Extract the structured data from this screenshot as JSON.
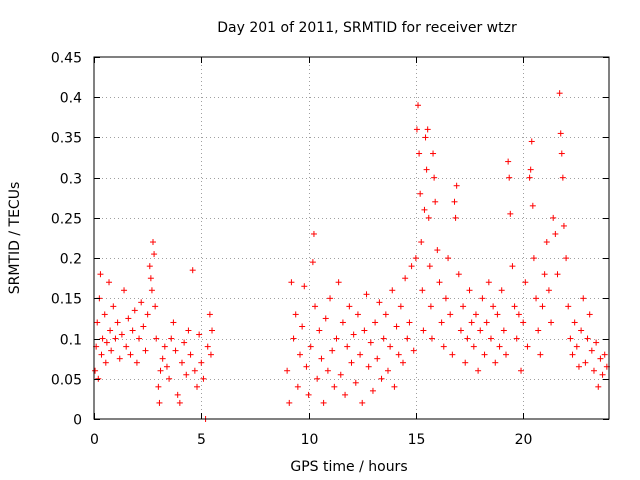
{
  "chart_data": {
    "type": "scatter",
    "title": "Day 201 of 2011, SRMTID for receiver wtzr",
    "xlabel": "GPS time / hours",
    "ylabel": "SRMTID / TECUs",
    "xlim": [
      0,
      24
    ],
    "ylim": [
      0,
      0.45
    ],
    "x_ticks": [
      0,
      5,
      10,
      15,
      20
    ],
    "x_tick_labels": [
      "0",
      "5",
      "10",
      "15",
      "20"
    ],
    "y_ticks": [
      0,
      0.05,
      0.1,
      0.15,
      0.2,
      0.25,
      0.3,
      0.35,
      0.4,
      0.45
    ],
    "y_tick_labels": [
      "0",
      "0.05",
      "0.1",
      "0.15",
      "0.2",
      "0.25",
      "0.3",
      "0.35",
      "0.4",
      "0.45"
    ],
    "grid": true,
    "marker": "+",
    "color": "#ff0000",
    "series": [
      {
        "name": "SRMTID",
        "points": [
          [
            0.05,
            0.06
          ],
          [
            0.1,
            0.09
          ],
          [
            0.15,
            0.12
          ],
          [
            0.2,
            0.05
          ],
          [
            0.25,
            0.15
          ],
          [
            0.3,
            0.18
          ],
          [
            0.35,
            0.08
          ],
          [
            0.4,
            0.1
          ],
          [
            0.5,
            0.13
          ],
          [
            0.55,
            0.07
          ],
          [
            0.6,
            0.095
          ],
          [
            0.7,
            0.17
          ],
          [
            0.75,
            0.11
          ],
          [
            0.8,
            0.085
          ],
          [
            0.9,
            0.14
          ],
          [
            1.0,
            0.1
          ],
          [
            1.1,
            0.12
          ],
          [
            1.2,
            0.075
          ],
          [
            1.3,
            0.105
          ],
          [
            1.4,
            0.16
          ],
          [
            1.5,
            0.09
          ],
          [
            1.6,
            0.125
          ],
          [
            1.7,
            0.08
          ],
          [
            1.8,
            0.11
          ],
          [
            1.9,
            0.135
          ],
          [
            2.0,
            0.07
          ],
          [
            2.1,
            0.1
          ],
          [
            2.2,
            0.145
          ],
          [
            2.3,
            0.115
          ],
          [
            2.4,
            0.085
          ],
          [
            2.5,
            0.13
          ],
          [
            2.6,
            0.19
          ],
          [
            2.65,
            0.175
          ],
          [
            2.7,
            0.16
          ],
          [
            2.75,
            0.22
          ],
          [
            2.8,
            0.205
          ],
          [
            2.85,
            0.14
          ],
          [
            2.9,
            0.1
          ],
          [
            3.0,
            0.04
          ],
          [
            3.05,
            0.02
          ],
          [
            3.1,
            0.06
          ],
          [
            3.2,
            0.075
          ],
          [
            3.3,
            0.09
          ],
          [
            3.4,
            0.065
          ],
          [
            3.5,
            0.05
          ],
          [
            3.6,
            0.1
          ],
          [
            3.7,
            0.12
          ],
          [
            3.8,
            0.085
          ],
          [
            3.9,
            0.03
          ],
          [
            4.0,
            0.02
          ],
          [
            4.1,
            0.07
          ],
          [
            4.2,
            0.095
          ],
          [
            4.3,
            0.055
          ],
          [
            4.4,
            0.11
          ],
          [
            4.5,
            0.08
          ],
          [
            4.6,
            0.185
          ],
          [
            4.7,
            0.06
          ],
          [
            4.8,
            0.04
          ],
          [
            4.9,
            0.105
          ],
          [
            5.0,
            0.07
          ],
          [
            5.1,
            0.05
          ],
          [
            5.2,
            0.0
          ],
          [
            5.3,
            0.09
          ],
          [
            5.4,
            0.13
          ],
          [
            5.45,
            0.08
          ],
          [
            5.5,
            0.11
          ],
          [
            9.0,
            0.06
          ],
          [
            9.1,
            0.02
          ],
          [
            9.2,
            0.17
          ],
          [
            9.3,
            0.1
          ],
          [
            9.4,
            0.13
          ],
          [
            9.5,
            0.04
          ],
          [
            9.6,
            0.08
          ],
          [
            9.7,
            0.115
          ],
          [
            9.8,
            0.165
          ],
          [
            9.9,
            0.065
          ],
          [
            10.0,
            0.03
          ],
          [
            10.1,
            0.09
          ],
          [
            10.2,
            0.195
          ],
          [
            10.25,
            0.23
          ],
          [
            10.3,
            0.14
          ],
          [
            10.4,
            0.05
          ],
          [
            10.5,
            0.11
          ],
          [
            10.6,
            0.075
          ],
          [
            10.7,
            0.02
          ],
          [
            10.8,
            0.125
          ],
          [
            10.9,
            0.06
          ],
          [
            11.0,
            0.15
          ],
          [
            11.1,
            0.085
          ],
          [
            11.2,
            0.04
          ],
          [
            11.3,
            0.1
          ],
          [
            11.4,
            0.17
          ],
          [
            11.5,
            0.055
          ],
          [
            11.6,
            0.12
          ],
          [
            11.7,
            0.03
          ],
          [
            11.8,
            0.09
          ],
          [
            11.9,
            0.14
          ],
          [
            12.0,
            0.07
          ],
          [
            12.1,
            0.105
          ],
          [
            12.2,
            0.045
          ],
          [
            12.3,
            0.13
          ],
          [
            12.4,
            0.08
          ],
          [
            12.5,
            0.02
          ],
          [
            12.6,
            0.11
          ],
          [
            12.7,
            0.155
          ],
          [
            12.8,
            0.065
          ],
          [
            12.9,
            0.095
          ],
          [
            13.0,
            0.035
          ],
          [
            13.1,
            0.12
          ],
          [
            13.2,
            0.075
          ],
          [
            13.3,
            0.145
          ],
          [
            13.4,
            0.05
          ],
          [
            13.5,
            0.1
          ],
          [
            13.6,
            0.13
          ],
          [
            13.7,
            0.06
          ],
          [
            13.8,
            0.09
          ],
          [
            13.9,
            0.16
          ],
          [
            14.0,
            0.04
          ],
          [
            14.1,
            0.115
          ],
          [
            14.2,
            0.08
          ],
          [
            14.3,
            0.14
          ],
          [
            14.4,
            0.07
          ],
          [
            14.5,
            0.175
          ],
          [
            14.6,
            0.1
          ],
          [
            14.7,
            0.12
          ],
          [
            14.8,
            0.19
          ],
          [
            14.9,
            0.085
          ],
          [
            15.0,
            0.2
          ],
          [
            15.05,
            0.36
          ],
          [
            15.1,
            0.39
          ],
          [
            15.15,
            0.33
          ],
          [
            15.2,
            0.28
          ],
          [
            15.25,
            0.22
          ],
          [
            15.3,
            0.16
          ],
          [
            15.35,
            0.11
          ],
          [
            15.4,
            0.26
          ],
          [
            15.45,
            0.35
          ],
          [
            15.5,
            0.31
          ],
          [
            15.55,
            0.36
          ],
          [
            15.6,
            0.25
          ],
          [
            15.65,
            0.19
          ],
          [
            15.7,
            0.14
          ],
          [
            15.75,
            0.1
          ],
          [
            15.8,
            0.33
          ],
          [
            15.85,
            0.3
          ],
          [
            15.9,
            0.27
          ],
          [
            16.0,
            0.21
          ],
          [
            16.1,
            0.17
          ],
          [
            16.2,
            0.12
          ],
          [
            16.3,
            0.09
          ],
          [
            16.4,
            0.15
          ],
          [
            16.5,
            0.2
          ],
          [
            16.6,
            0.13
          ],
          [
            16.7,
            0.08
          ],
          [
            16.8,
            0.27
          ],
          [
            16.85,
            0.25
          ],
          [
            16.9,
            0.29
          ],
          [
            17.0,
            0.18
          ],
          [
            17.1,
            0.11
          ],
          [
            17.2,
            0.14
          ],
          [
            17.3,
            0.07
          ],
          [
            17.4,
            0.1
          ],
          [
            17.5,
            0.16
          ],
          [
            17.6,
            0.12
          ],
          [
            17.7,
            0.09
          ],
          [
            17.8,
            0.13
          ],
          [
            17.9,
            0.06
          ],
          [
            18.0,
            0.11
          ],
          [
            18.1,
            0.15
          ],
          [
            18.2,
            0.08
          ],
          [
            18.3,
            0.12
          ],
          [
            18.4,
            0.17
          ],
          [
            18.5,
            0.1
          ],
          [
            18.6,
            0.14
          ],
          [
            18.7,
            0.07
          ],
          [
            18.8,
            0.13
          ],
          [
            18.9,
            0.09
          ],
          [
            19.0,
            0.16
          ],
          [
            19.1,
            0.11
          ],
          [
            19.2,
            0.08
          ],
          [
            19.3,
            0.32
          ],
          [
            19.35,
            0.3
          ],
          [
            19.4,
            0.255
          ],
          [
            19.5,
            0.19
          ],
          [
            19.6,
            0.14
          ],
          [
            19.7,
            0.1
          ],
          [
            19.8,
            0.13
          ],
          [
            19.9,
            0.06
          ],
          [
            20.0,
            0.12
          ],
          [
            20.1,
            0.17
          ],
          [
            20.2,
            0.09
          ],
          [
            20.3,
            0.3
          ],
          [
            20.35,
            0.31
          ],
          [
            20.4,
            0.345
          ],
          [
            20.45,
            0.265
          ],
          [
            20.5,
            0.2
          ],
          [
            20.6,
            0.15
          ],
          [
            20.7,
            0.11
          ],
          [
            20.8,
            0.08
          ],
          [
            20.9,
            0.14
          ],
          [
            21.0,
            0.18
          ],
          [
            21.1,
            0.22
          ],
          [
            21.2,
            0.16
          ],
          [
            21.3,
            0.12
          ],
          [
            21.4,
            0.25
          ],
          [
            21.5,
            0.23
          ],
          [
            21.6,
            0.18
          ],
          [
            21.7,
            0.405
          ],
          [
            21.75,
            0.355
          ],
          [
            21.8,
            0.33
          ],
          [
            21.85,
            0.3
          ],
          [
            21.9,
            0.24
          ],
          [
            22.0,
            0.2
          ],
          [
            22.1,
            0.14
          ],
          [
            22.2,
            0.1
          ],
          [
            22.3,
            0.08
          ],
          [
            22.4,
            0.12
          ],
          [
            22.5,
            0.09
          ],
          [
            22.6,
            0.065
          ],
          [
            22.7,
            0.11
          ],
          [
            22.8,
            0.15
          ],
          [
            22.9,
            0.07
          ],
          [
            23.0,
            0.1
          ],
          [
            23.1,
            0.13
          ],
          [
            23.2,
            0.085
          ],
          [
            23.3,
            0.06
          ],
          [
            23.4,
            0.095
          ],
          [
            23.5,
            0.04
          ],
          [
            23.6,
            0.075
          ],
          [
            23.7,
            0.055
          ],
          [
            23.8,
            0.08
          ],
          [
            23.9,
            0.065
          ]
        ]
      }
    ]
  }
}
